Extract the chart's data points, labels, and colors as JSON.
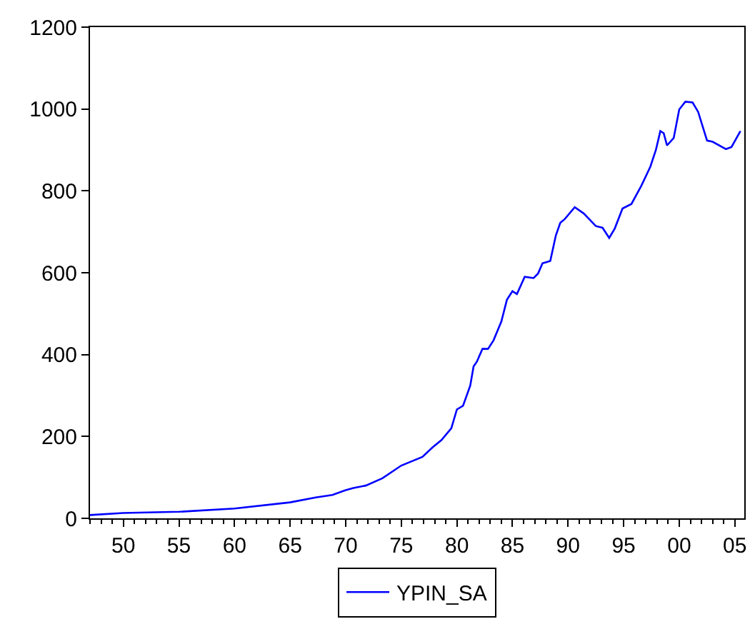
{
  "chart_data": {
    "type": "line",
    "x": [
      1947.0,
      1950.0,
      1955.0,
      1960.0,
      1965.0,
      1967.3,
      1968.8,
      1970.0,
      1970.7,
      1971.8,
      1973.3,
      1975.0,
      1976.9,
      1977.8,
      1978.6,
      1979.5,
      1980.0,
      1980.55,
      1981.2,
      1981.5,
      1981.8,
      1982.3,
      1982.8,
      1983.3,
      1984.0,
      1984.5,
      1985.0,
      1985.4,
      1986.1,
      1986.9,
      1987.3,
      1987.7,
      1988.4,
      1988.9,
      1989.3,
      1989.7,
      1990.6,
      1991.4,
      1992.5,
      1993.1,
      1993.7,
      1994.2,
      1994.9,
      1995.7,
      1996.6,
      1997.4,
      1997.9,
      1998.3,
      1998.6,
      1998.9,
      1999.5,
      2000.0,
      2000.55,
      2001.2,
      2001.7,
      2002.5,
      2003.0,
      2004.2,
      2004.7,
      2005.5
    ],
    "series": [
      {
        "name": "YPIN_SA",
        "color": "#0000ff",
        "values": [
          8,
          13,
          16,
          24,
          39,
          51,
          57,
          69,
          74,
          80,
          98,
          129,
          150,
          173,
          191,
          220,
          266,
          275,
          324,
          371,
          383,
          414,
          414,
          435,
          481,
          534,
          555,
          548,
          590,
          587,
          598,
          623,
          629,
          691,
          722,
          731,
          760,
          745,
          714,
          710,
          685,
          708,
          757,
          768,
          813,
          859,
          900,
          946,
          941,
          911,
          929,
          999,
          1018,
          1016,
          993,
          923,
          920,
          902,
          907,
          946
        ]
      }
    ],
    "xlim": [
      1947,
      2005.85
    ],
    "xticks": [
      {
        "value": 1950,
        "label": "50"
      },
      {
        "value": 1955,
        "label": "55"
      },
      {
        "value": 1960,
        "label": "60"
      },
      {
        "value": 1965,
        "label": "65"
      },
      {
        "value": 1970,
        "label": "70"
      },
      {
        "value": 1975,
        "label": "75"
      },
      {
        "value": 1980,
        "label": "80"
      },
      {
        "value": 1985,
        "label": "85"
      },
      {
        "value": 1990,
        "label": "90"
      },
      {
        "value": 1995,
        "label": "95"
      },
      {
        "value": 2000,
        "label": "00"
      },
      {
        "value": 2005,
        "label": "05"
      }
    ],
    "ylim": [
      0,
      1200
    ],
    "yticks": [
      0,
      200,
      400,
      600,
      800,
      1000,
      1200
    ],
    "grid": false,
    "legend": "bottom",
    "marker": "none",
    "line_style": "solid"
  }
}
